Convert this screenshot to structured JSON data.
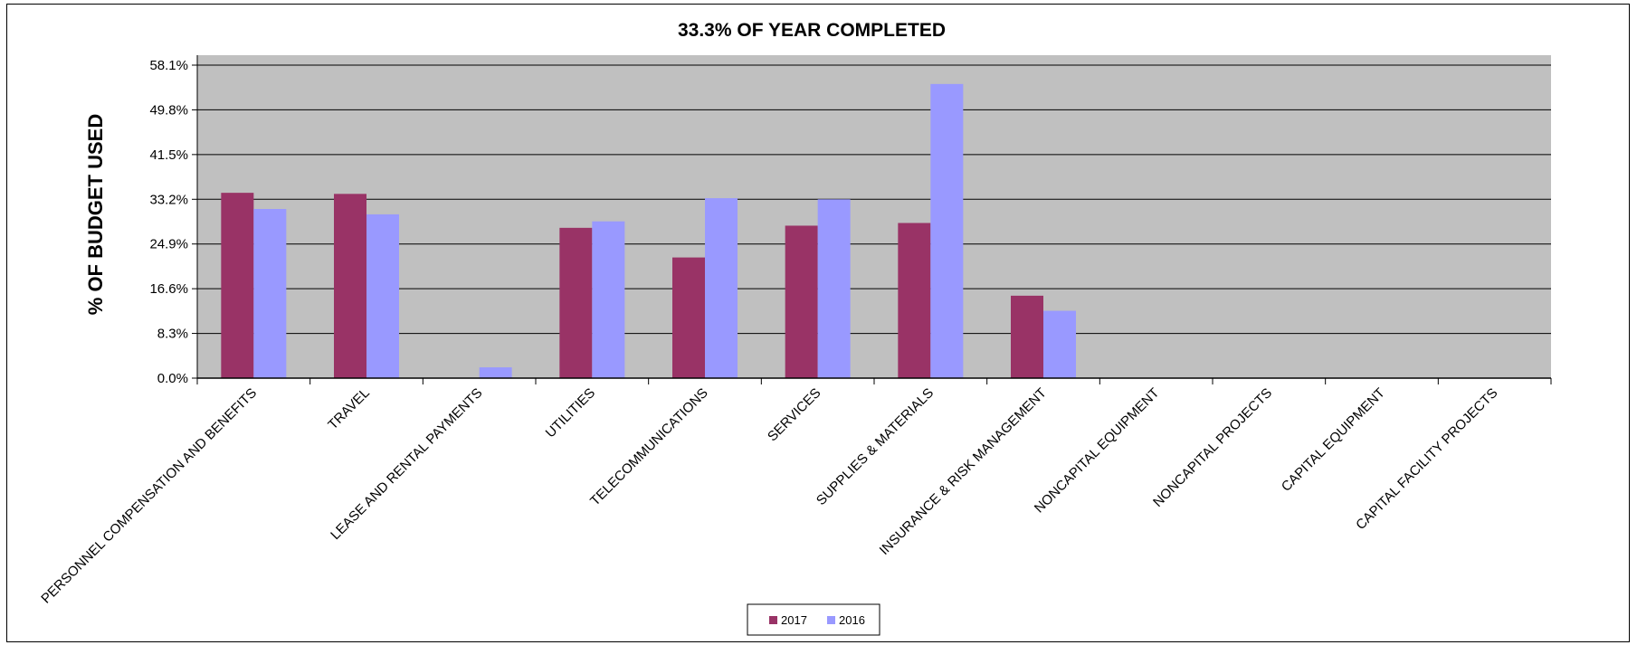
{
  "chart_data": {
    "type": "bar",
    "title": "33.3% OF YEAR COMPLETED",
    "xlabel": "",
    "ylabel": "% OF BUDGET USED",
    "ylim": [
      0,
      58.1
    ],
    "yticks": [
      "0.0%",
      "8.3%",
      "16.6%",
      "24.9%",
      "33.2%",
      "41.5%",
      "49.8%",
      "58.1%"
    ],
    "ytick_values": [
      0,
      8.3,
      16.6,
      24.9,
      33.2,
      41.5,
      49.8,
      58.1
    ],
    "grid": true,
    "legend_position": "bottom",
    "categories": [
      "PERSONNEL COMPENSATION AND BENEFITS",
      "TRAVEL",
      "LEASE AND RENTAL PAYMENTS",
      "UTILITIES",
      "TELECOMMUNICATIONS",
      "SERVICES",
      "SUPPLIES & MATERIALS",
      "INSURANCE & RISK MANAGEMENT",
      "NONCAPITAL EQUIPMENT",
      "NONCAPITAL PROJECTS",
      "CAPITAL EQUIPMENT",
      "CAPITAL FACILITY PROJECTS"
    ],
    "series": [
      {
        "name": "2017",
        "color": "#993366",
        "values": [
          34.4,
          34.2,
          0,
          27.9,
          22.4,
          28.3,
          28.8,
          15.3,
          0,
          0,
          0,
          0
        ]
      },
      {
        "name": "2016",
        "color": "#9999ff",
        "values": [
          31.4,
          30.4,
          2.0,
          29.1,
          33.4,
          33.2,
          54.6,
          12.5,
          0,
          0,
          0,
          0
        ]
      }
    ],
    "plot_background": "#c0c0c0"
  }
}
